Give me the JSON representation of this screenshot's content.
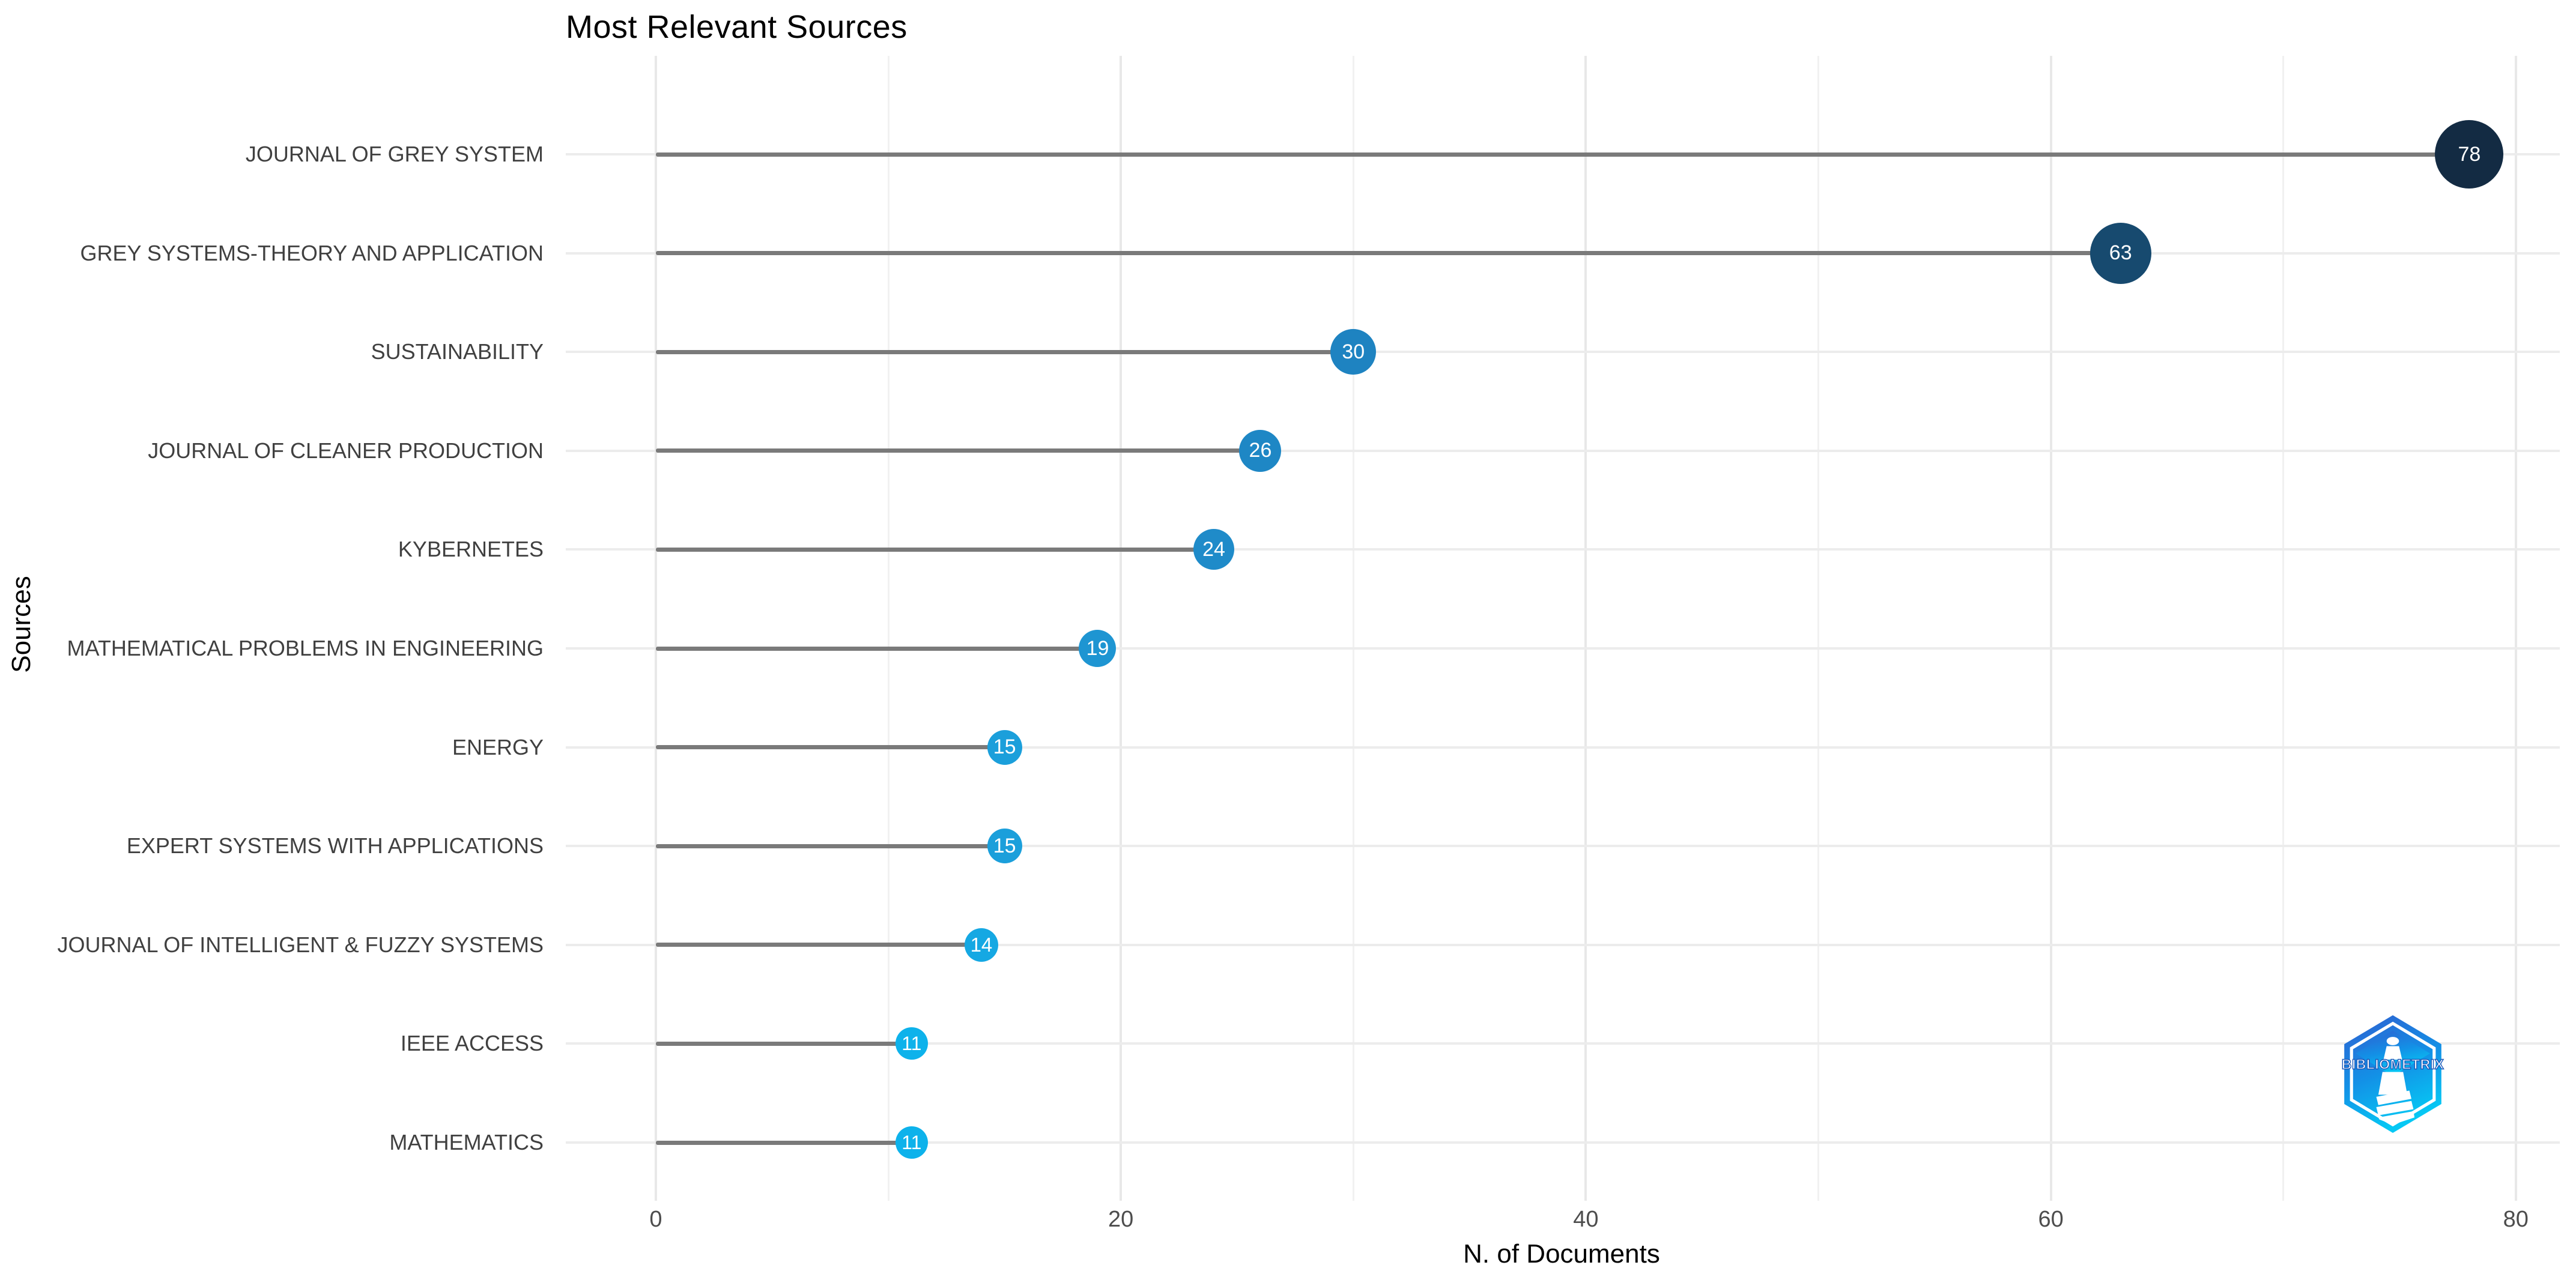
{
  "title": "Most Relevant Sources",
  "x_axis": {
    "title": "N. of Documents"
  },
  "y_axis": {
    "title": "Sources"
  },
  "logo": {
    "text": "BIBLIOMETRIX"
  },
  "chart_data": {
    "type": "lollipop",
    "orientation": "horizontal",
    "title": "Most Relevant Sources",
    "xlabel": "N. of Documents",
    "ylabel": "Sources",
    "categories": [
      "JOURNAL OF GREY SYSTEM",
      "GREY SYSTEMS-THEORY AND APPLICATION",
      "SUSTAINABILITY",
      "JOURNAL OF CLEANER PRODUCTION",
      "KYBERNETES",
      "MATHEMATICAL PROBLEMS IN ENGINEERING",
      "ENERGY",
      "EXPERT SYSTEMS WITH APPLICATIONS",
      "JOURNAL OF INTELLIGENT & FUZZY SYSTEMS",
      "IEEE ACCESS",
      "MATHEMATICS"
    ],
    "values": [
      78,
      63,
      30,
      26,
      24,
      19,
      15,
      15,
      14,
      11,
      11
    ],
    "point_colors": [
      "#132B43",
      "#174A6F",
      "#1E83C1",
      "#1E87C5",
      "#1F8BC9",
      "#1E95D2",
      "#1B9FDB",
      "#1B9FDB",
      "#15A8E3",
      "#0DB2EB",
      "#0DB2EB"
    ],
    "point_radii": [
      57,
      51,
      38,
      35,
      34,
      31,
      29,
      29,
      28,
      27,
      27
    ],
    "xlim": [
      0,
      80
    ],
    "x_major_ticks": [
      0,
      20,
      40,
      60,
      80
    ],
    "x_minor_ticks": [
      10,
      30,
      50,
      70
    ],
    "grid": true,
    "legend": false,
    "colors": {
      "stem": "#7a7a7a",
      "grid_major": "#e8e8e8",
      "grid_minor": "#f1f1f1",
      "grid_row": "#ececec",
      "axis_text": "#4d4d4d",
      "category_text": "#404040",
      "bubble_text": "#ffffff"
    }
  }
}
